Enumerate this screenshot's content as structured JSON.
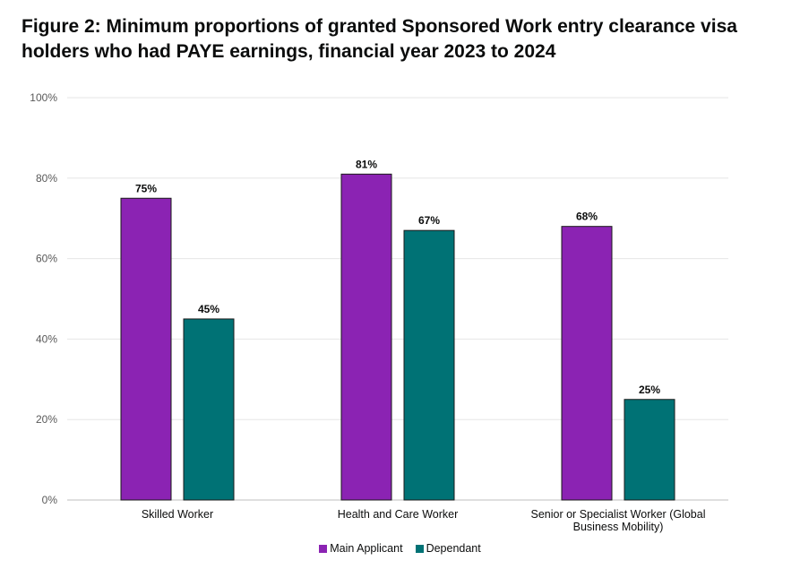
{
  "title": "Figure 2: Minimum proportions of granted Sponsored Work entry clearance visa holders who had PAYE earnings, financial year 2023 to 2024",
  "chart_data": {
    "type": "bar",
    "title": "Figure 2: Minimum proportions of granted Sponsored Work entry clearance visa holders who had PAYE earnings, financial year 2023 to 2024",
    "categories": [
      [
        "Skilled Worker"
      ],
      [
        "Health and Care Worker"
      ],
      [
        "Senior or Specialist Worker (Global",
        "Business Mobility)"
      ]
    ],
    "series": [
      {
        "name": "Main Applicant",
        "color": "#8b23b3",
        "values": [
          75,
          81,
          68
        ],
        "labels": [
          "75%",
          "81%",
          "68%"
        ]
      },
      {
        "name": "Dependant",
        "color": "#007275",
        "values": [
          45,
          67,
          25
        ],
        "labels": [
          "45%",
          "67%",
          "25%"
        ]
      }
    ],
    "ylim": [
      0,
      100
    ],
    "yticks": [
      "0%",
      "20%",
      "40%",
      "60%",
      "80%",
      "100%"
    ],
    "ytick_values": [
      0,
      20,
      40,
      60,
      80,
      100
    ],
    "grid": true,
    "legend_position": "bottom"
  }
}
